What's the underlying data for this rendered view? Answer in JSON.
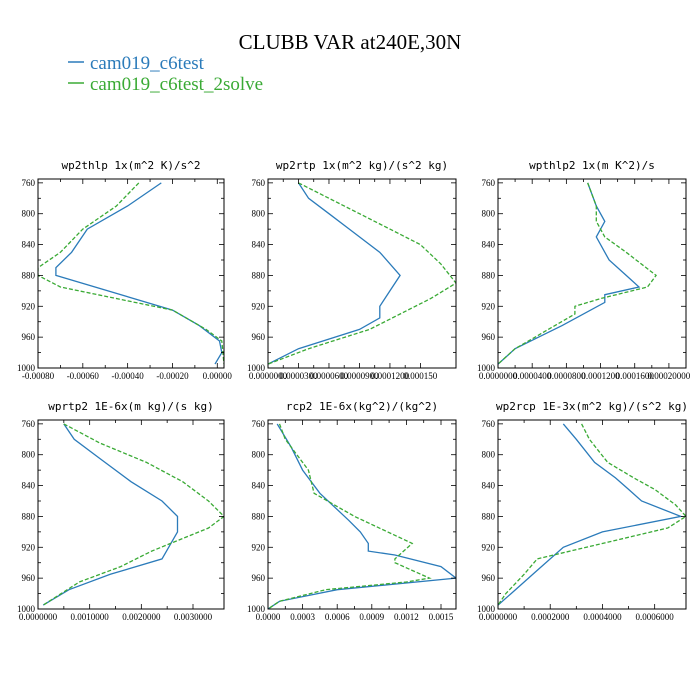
{
  "figure": {
    "title": "CLUBB VAR at240E,30N",
    "legend": [
      {
        "label": "cam019_c6test",
        "color": "#2b7bba",
        "dash": "none"
      },
      {
        "label": "cam019_c6test_2solve",
        "color": "#3aaa35",
        "dash": "dashed"
      }
    ]
  },
  "chart_data": [
    {
      "type": "line",
      "title": "wp2thlp  1x(m^2 K)/s^2",
      "xlim": [
        -0.0008,
        3e-05
      ],
      "xticks": [
        -0.0008,
        -0.0006,
        -0.0004,
        -0.0002,
        0.0
      ],
      "xtick_labels": [
        "-0.00080",
        "-0.00060",
        "-0.00040",
        "-0.00020",
        "0.00000"
      ],
      "ylim": [
        1000,
        755
      ],
      "yticks": [
        760,
        800,
        840,
        880,
        920,
        960,
        1000
      ],
      "series": [
        {
          "name": "cam019_c6test",
          "x": [
            -0.00025,
            -0.0004,
            -0.00058,
            -0.00065,
            -0.00072,
            -0.00072,
            -0.0002,
            -8e-05,
            1e-05,
            2e-05,
            -1e-05
          ],
          "y": [
            760,
            790,
            820,
            850,
            870,
            880,
            925,
            945,
            965,
            980,
            995
          ]
        },
        {
          "name": "cam019_c6test_2solve",
          "x": [
            -0.00035,
            -0.00045,
            -0.0006,
            -0.0007,
            -0.0008,
            -0.0008,
            -0.0007,
            -0.0002,
            -5e-05,
            2e-05,
            3e-05
          ],
          "y": [
            760,
            790,
            820,
            850,
            870,
            880,
            895,
            925,
            950,
            965,
            995
          ]
        }
      ]
    },
    {
      "type": "line",
      "title": "wp2rtp  1x(m^2 kg)/(s^2 kg)",
      "xlim": [
        0.0,
        0.000185
      ],
      "xticks": [
        0.0,
        3e-05,
        6e-05,
        9e-05,
        0.00012,
        0.00015
      ],
      "xtick_labels": [
        "0.0000000",
        "0.0000300",
        "0.0000600",
        "0.0000900",
        "0.0001200",
        "0.000150"
      ],
      "ylim": [
        1000,
        755
      ],
      "yticks": [
        760,
        800,
        840,
        880,
        920,
        960,
        1000
      ],
      "series": [
        {
          "name": "cam019_c6test",
          "x": [
            3e-05,
            4e-05,
            6e-05,
            8e-05,
            0.00011,
            0.00013,
            0.00012,
            0.00011,
            0.00011,
            9e-05,
            3e-05,
            0.0
          ],
          "y": [
            760,
            780,
            800,
            820,
            850,
            880,
            900,
            920,
            935,
            950,
            975,
            995
          ]
        },
        {
          "name": "cam019_c6test_2solve",
          "x": [
            3e-05,
            6e-05,
            9e-05,
            0.00012,
            0.00015,
            0.00017,
            0.000185,
            0.00016,
            0.00013,
            0.0001,
            4e-05,
            0.0
          ],
          "y": [
            760,
            780,
            800,
            820,
            840,
            865,
            890,
            910,
            930,
            950,
            975,
            995
          ]
        }
      ]
    },
    {
      "type": "line",
      "title": "wpthlp2  1x(m K^2)/s",
      "xlim": [
        0.0,
        0.00022
      ],
      "xticks": [
        0.0,
        4e-05,
        8e-05,
        0.00012,
        0.00016,
        0.0002
      ],
      "xtick_labels": [
        "0.0000000",
        "0.0000400",
        "0.0000800",
        "0.0001200",
        "0.0001600",
        "0.00020000"
      ],
      "ylim": [
        1000,
        755
      ],
      "yticks": [
        760,
        800,
        840,
        880,
        920,
        960,
        1000
      ],
      "series": [
        {
          "name": "cam019_c6test",
          "x": [
            0.000105,
            0.000115,
            0.000125,
            0.000115,
            0.00013,
            0.00015,
            0.000165,
            0.000125,
            0.000125,
            7.5e-05,
            2e-05,
            0.0
          ],
          "y": [
            760,
            790,
            810,
            830,
            860,
            880,
            895,
            905,
            915,
            945,
            975,
            995
          ]
        },
        {
          "name": "cam019_c6test_2solve",
          "x": [
            0.000105,
            0.000115,
            0.000115,
            0.000125,
            0.00015,
            0.000185,
            0.000175,
            0.00012,
            9e-05,
            9e-05,
            2e-05,
            0.0
          ],
          "y": [
            760,
            790,
            810,
            830,
            850,
            880,
            895,
            910,
            920,
            930,
            975,
            995
          ]
        }
      ]
    },
    {
      "type": "line",
      "title": "wprtp2  1E-6x(m kg)/(s kg)",
      "xlim": [
        0.0,
        0.0036
      ],
      "xticks": [
        0.0,
        0.001,
        0.002,
        0.003
      ],
      "xtick_labels": [
        "0.0000000",
        "0.0010000",
        "0.0020000",
        "0.0030000"
      ],
      "ylim": [
        1000,
        755
      ],
      "yticks": [
        760,
        800,
        840,
        880,
        920,
        960,
        1000
      ],
      "series": [
        {
          "name": "cam019_c6test",
          "x": [
            0.0005,
            0.0007,
            0.0012,
            0.0018,
            0.0024,
            0.0027,
            0.0027,
            0.0024,
            0.0014,
            0.0006,
            0.0001
          ],
          "y": [
            760,
            780,
            805,
            835,
            860,
            880,
            900,
            935,
            955,
            975,
            995
          ]
        },
        {
          "name": "cam019_c6test_2solve",
          "x": [
            0.0005,
            0.0012,
            0.0021,
            0.0028,
            0.0033,
            0.0036,
            0.0033,
            0.0022,
            0.0016,
            0.0008,
            0.0001
          ],
          "y": [
            760,
            785,
            810,
            835,
            860,
            880,
            895,
            925,
            945,
            965,
            995
          ]
        }
      ]
    },
    {
      "type": "line",
      "title": "rcp2  1E-6x(kg^2)/(kg^2)",
      "xlim": [
        0.0,
        0.00163
      ],
      "xticks": [
        0.0,
        0.0003,
        0.0006,
        0.0009,
        0.0012,
        0.0015
      ],
      "xtick_labels": [
        "0.0000",
        "0.0003",
        "0.0006",
        "0.0009",
        "0.0012",
        "0.0015"
      ],
      "ylim": [
        1000,
        755
      ],
      "yticks": [
        760,
        800,
        840,
        880,
        920,
        960,
        1000
      ],
      "series": [
        {
          "name": "cam019_c6test",
          "x": [
            8e-05,
            0.0002,
            0.0003,
            0.00045,
            0.0007,
            0.0008,
            0.00087,
            0.00087,
            0.0011,
            0.0015,
            0.00163,
            0.0006,
            0.0001,
            0.0
          ],
          "y": [
            760,
            790,
            820,
            850,
            885,
            900,
            915,
            925,
            930,
            945,
            960,
            975,
            990,
            1000
          ]
        },
        {
          "name": "cam019_c6test_2solve",
          "x": [
            0.0001,
            0.00015,
            0.00035,
            0.0004,
            0.00075,
            0.00125,
            0.0011,
            0.0011,
            0.0014,
            0.0012,
            0.0005,
            0.0001,
            0.0
          ],
          "y": [
            760,
            780,
            820,
            850,
            880,
            915,
            935,
            940,
            960,
            965,
            975,
            990,
            1000
          ]
        }
      ]
    },
    {
      "type": "line",
      "title": "wp2rcp  1E-3x(m^2 kg)/(s^2 kg)",
      "xlim": [
        0.0,
        0.00072
      ],
      "xticks": [
        0.0,
        0.0002,
        0.0004,
        0.0006
      ],
      "xtick_labels": [
        "0.0000000",
        "0.0002000",
        "0.0004000",
        "0.0006000"
      ],
      "ylim": [
        1000,
        755
      ],
      "yticks": [
        760,
        800,
        840,
        880,
        920,
        960,
        1000
      ],
      "series": [
        {
          "name": "cam019_c6test",
          "x": [
            0.00025,
            0.0003,
            0.00037,
            0.00045,
            0.0005,
            0.00055,
            0.0007,
            0.0004,
            0.00025,
            0.00015,
            5e-05,
            0.0
          ],
          "y": [
            760,
            780,
            810,
            830,
            845,
            860,
            880,
            900,
            920,
            950,
            980,
            995
          ]
        },
        {
          "name": "cam019_c6test_2solve",
          "x": [
            0.00032,
            0.00035,
            0.00042,
            0.00052,
            0.0006,
            0.00068,
            0.00072,
            0.00065,
            0.00015,
            0.0001,
            3e-05,
            0.0
          ],
          "y": [
            760,
            780,
            810,
            830,
            845,
            865,
            880,
            895,
            935,
            955,
            980,
            995
          ]
        }
      ]
    }
  ]
}
